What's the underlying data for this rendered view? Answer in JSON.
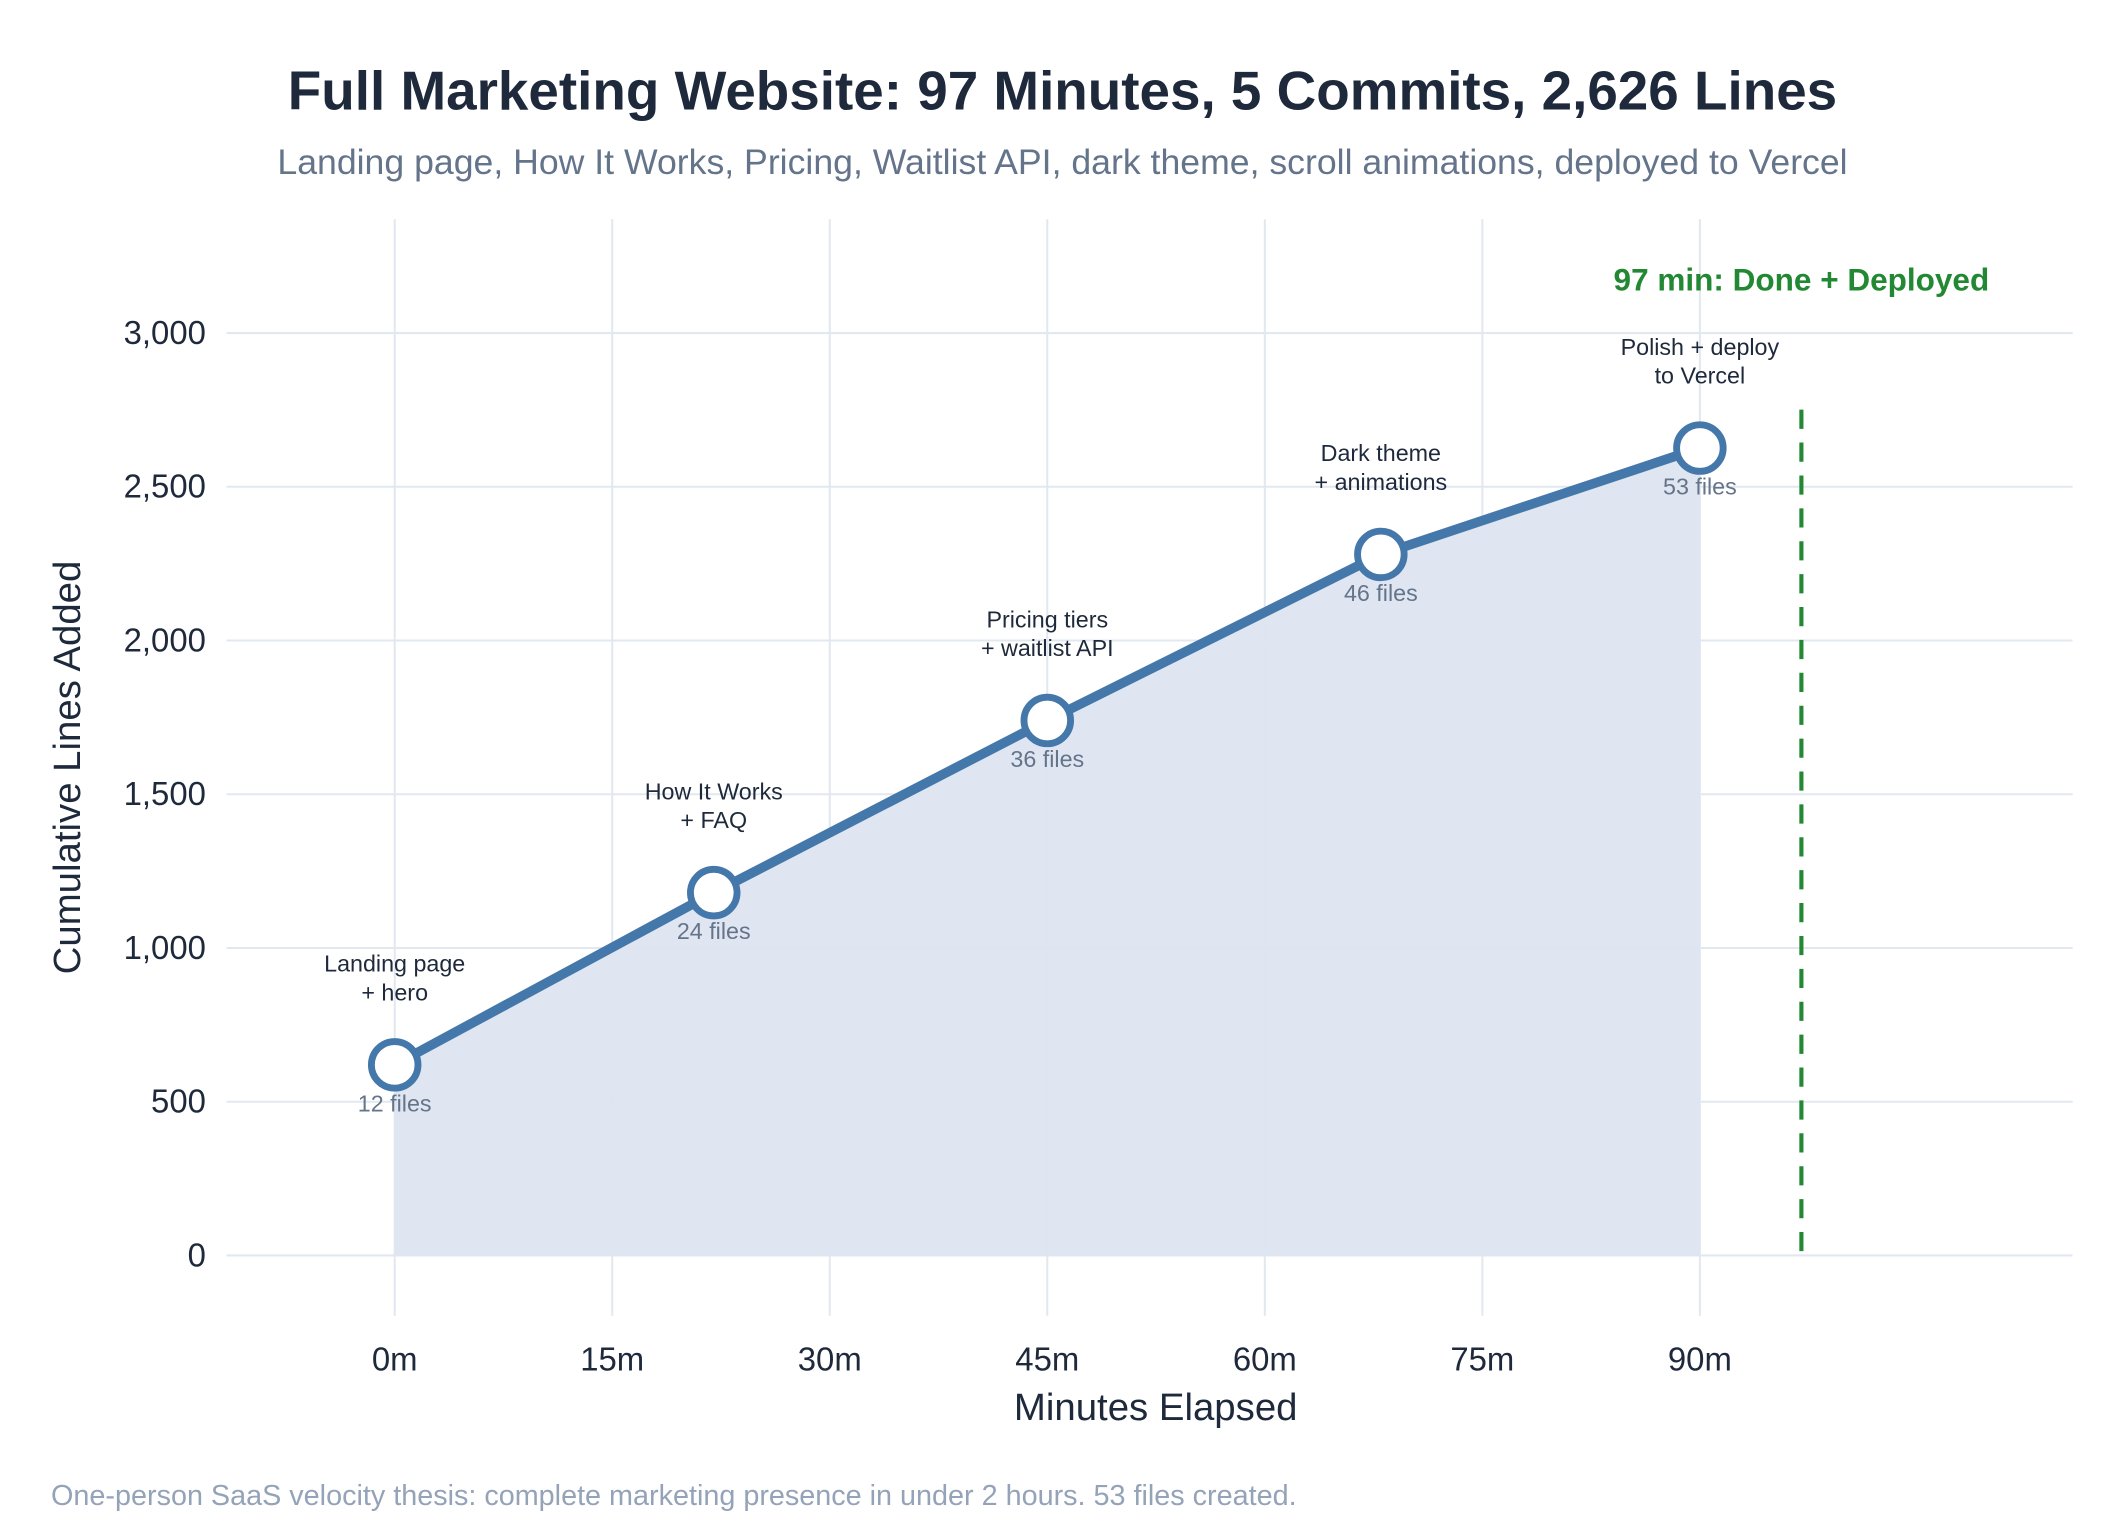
{
  "chart_data": {
    "type": "line",
    "title": "Full Marketing Website: 97 Minutes, 5 Commits, 2,626 Lines",
    "subtitle": "Landing page, How It Works, Pricing, Waitlist API, dark theme, scroll animations, deployed to Vercel",
    "xlabel": "Minutes Elapsed",
    "ylabel": "Cumulative Lines Added",
    "xlim": [
      -11.6,
      115.7
    ],
    "ylim": [
      -196,
      3370
    ],
    "grid": true,
    "xticks": [
      0,
      15,
      30,
      45,
      60,
      75,
      90
    ],
    "xtick_labels": [
      "0m",
      "15m",
      "30m",
      "45m",
      "60m",
      "75m",
      "90m"
    ],
    "yticks": [
      0,
      500,
      1000,
      1500,
      2000,
      2500,
      3000
    ],
    "ytick_labels": [
      "0",
      "500",
      "1,000",
      "1,500",
      "2,000",
      "2,500",
      "3,000"
    ],
    "series": [
      {
        "name": "Cumulative lines",
        "color": "#4477aa",
        "fill": "#dde5f0",
        "x": [
          0,
          22,
          45,
          68,
          90
        ],
        "y": [
          620,
          1180,
          1740,
          2280,
          2626
        ],
        "annotations": [
          [
            "Landing page",
            "+ hero"
          ],
          [
            "How It Works",
            "+ FAQ"
          ],
          [
            "Pricing tiers",
            "+ waitlist API"
          ],
          [
            "Dark theme",
            "+ animations"
          ],
          [
            "Polish + deploy",
            "to Vercel"
          ]
        ],
        "files": [
          "12 files",
          "24 files",
          "36 files",
          "46 files",
          "53 files"
        ]
      }
    ],
    "vline": {
      "x": 97,
      "label": "97 min: Done + Deployed",
      "color": "#228833"
    },
    "footer": "One-person SaaS velocity thesis: complete marketing presence in under 2 hours. 53 files created."
  }
}
